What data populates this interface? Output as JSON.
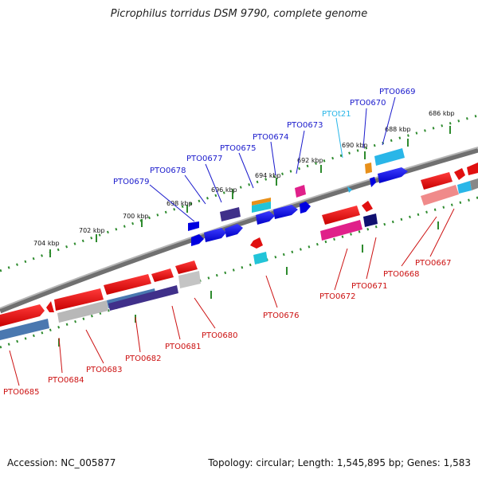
{
  "title": "Picrophilus torridus DSM 9790, complete genome",
  "footer": {
    "accession": "Accession: NC_005877",
    "topology": "Topology: circular; Length: 1,545,895 bp; Genes: 1,583"
  },
  "kbp_ticks": [
    "704 kbp",
    "702 kbp",
    "700 kbp",
    "698 kbp",
    "696 kbp",
    "694 kbp",
    "692 kbp",
    "690 kbp",
    "688 kbp",
    "686 kbp"
  ],
  "top_labels": [
    "PTO0679",
    "PTO0678",
    "PTO0677",
    "PTO0675",
    "PTO0674",
    "PTO0673",
    "PTOt21",
    "PTO0670",
    "PTO0669"
  ],
  "bottom_labels": [
    "PTO0685",
    "PTO0684",
    "PTO0683",
    "PTO0682",
    "PTO0681",
    "PTO0680",
    "PTO0676",
    "PTO0672",
    "PTO0671",
    "PTO0668",
    "PTO0667"
  ],
  "colors": {
    "forward_gene": "#1010dd",
    "reverse_gene": "#e01010",
    "trna": "#29b6e8",
    "backbone": "#888888",
    "scale_dots": "#2e8b2e",
    "top_label": "#1a1acc",
    "bottom_label": "#cc1111"
  }
}
